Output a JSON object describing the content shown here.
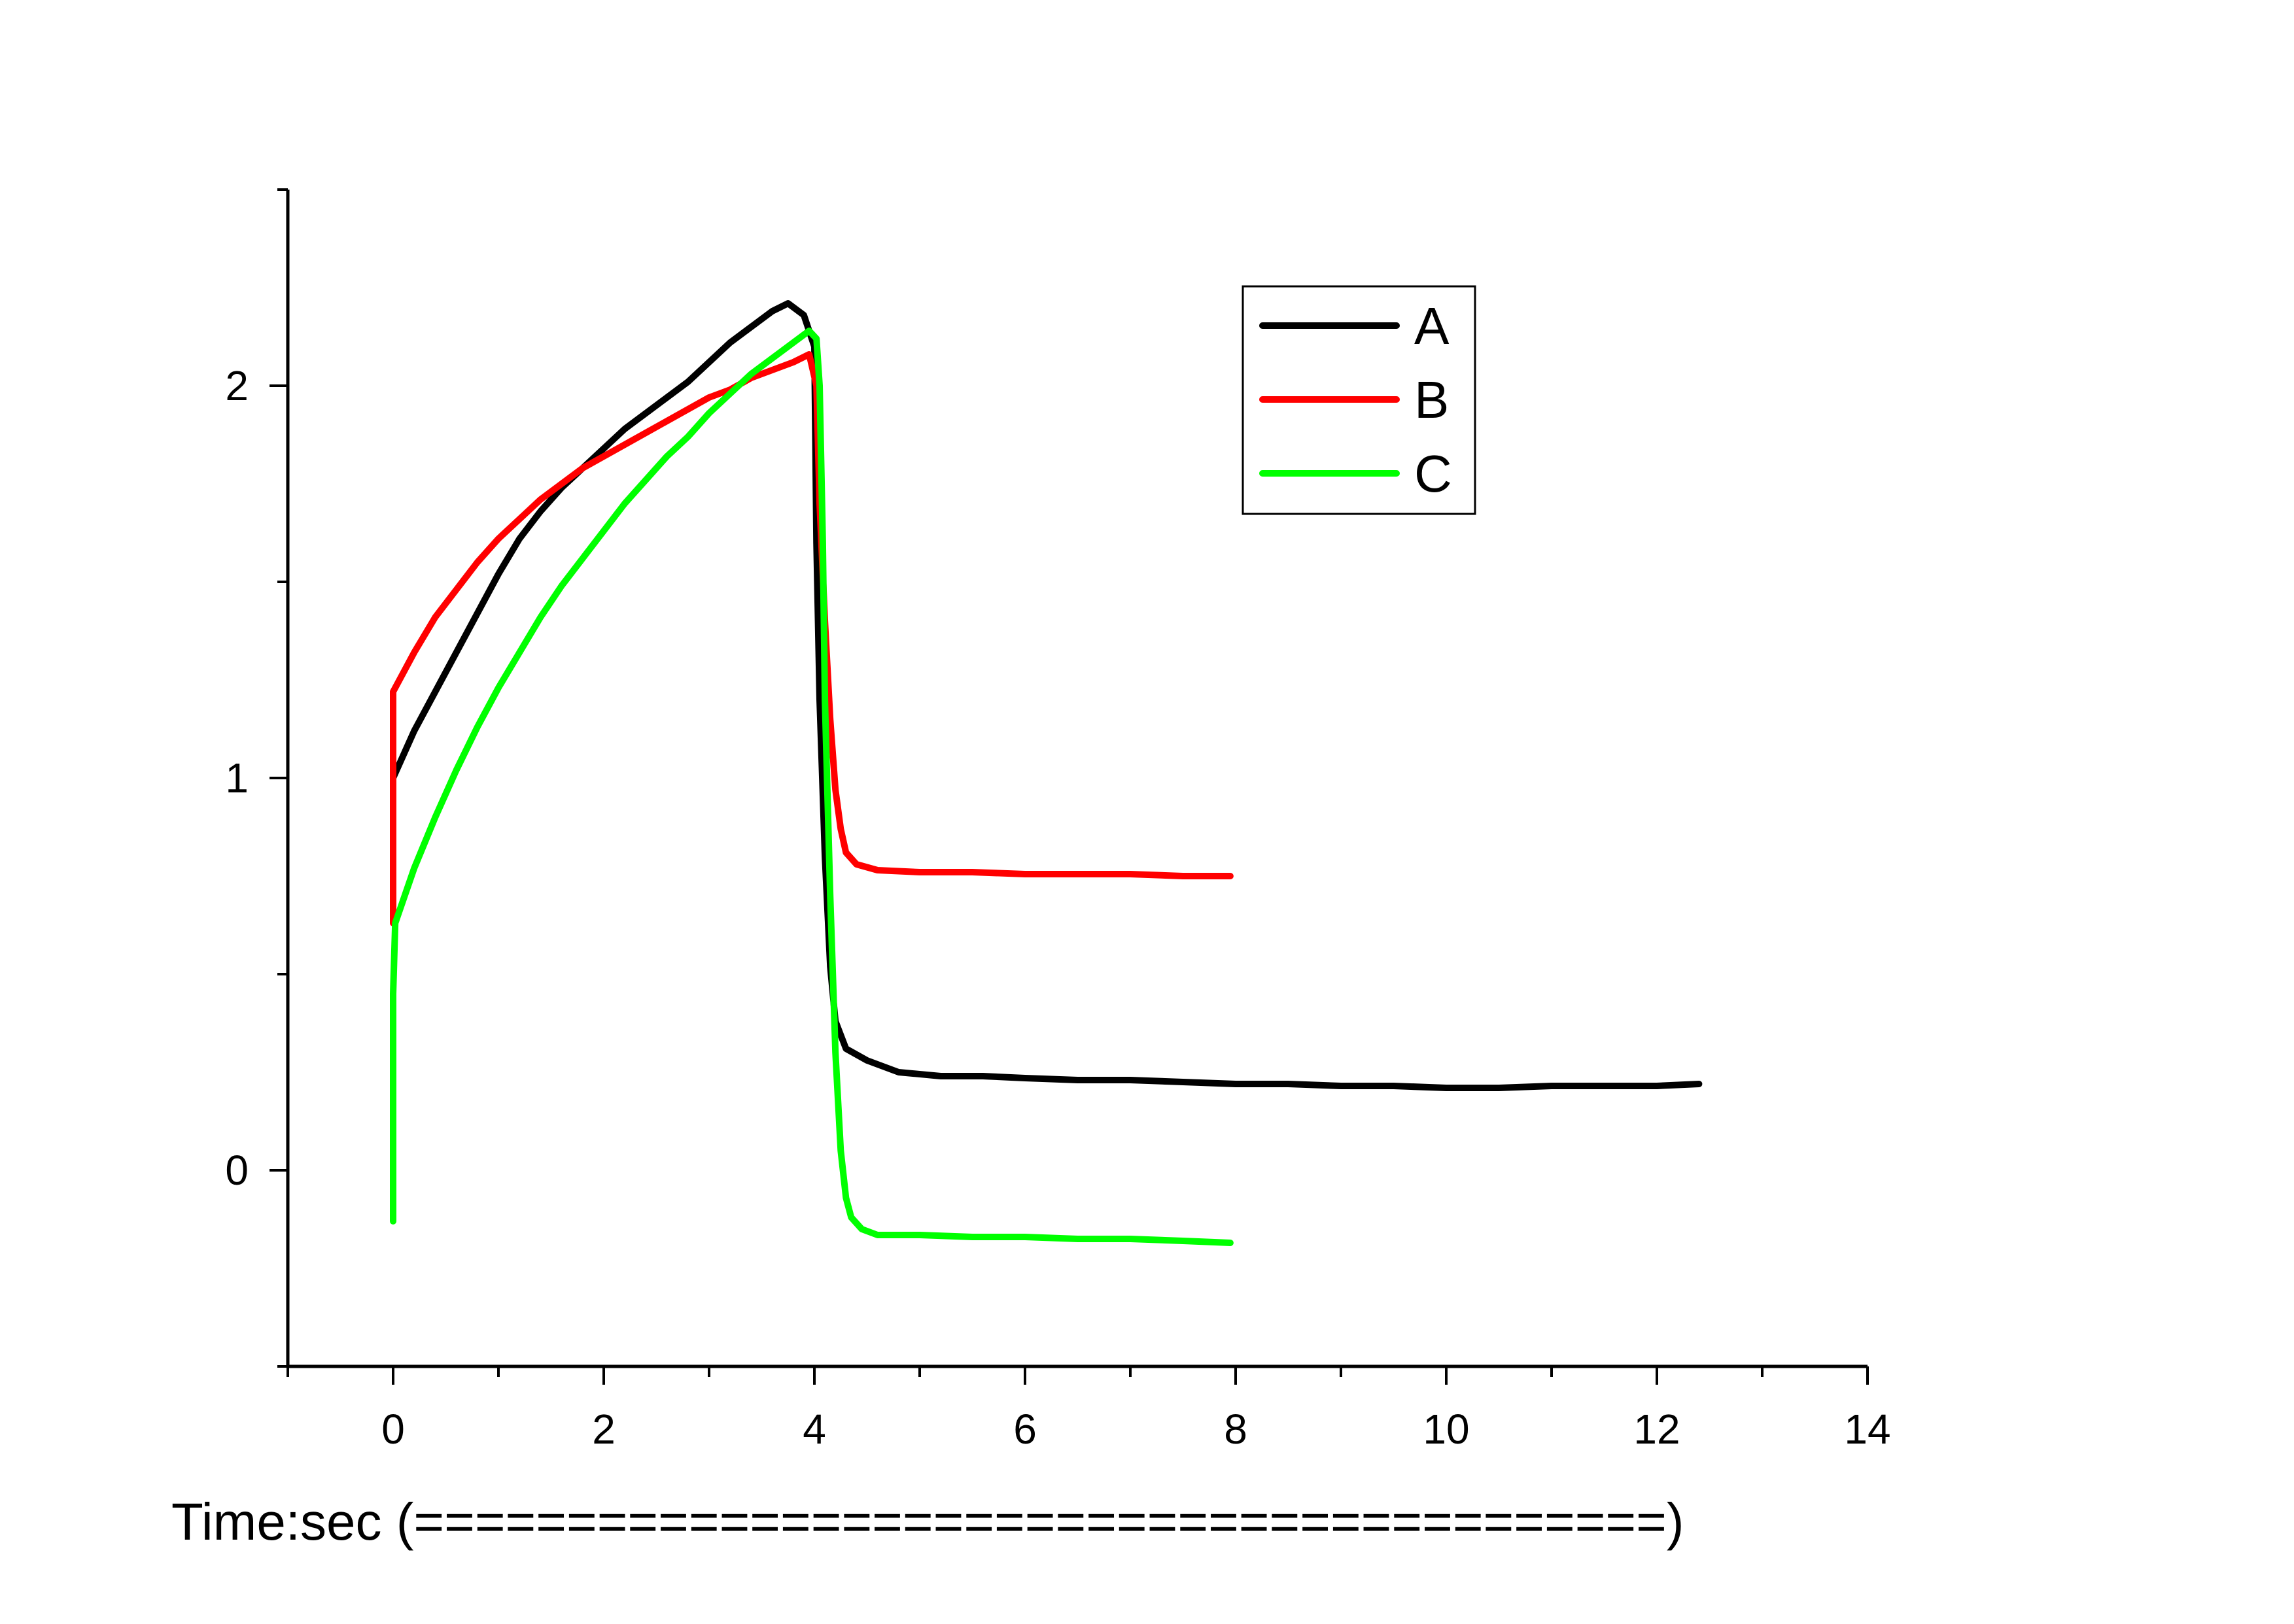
{
  "chart_data": {
    "type": "line",
    "title": "",
    "xlabel": "Time:sec (=========================================)",
    "ylabel": "",
    "xlim": [
      -1,
      14
    ],
    "ylim": [
      -0.5,
      2.5
    ],
    "x_ticks": [
      0,
      2,
      4,
      6,
      8,
      10,
      12,
      14
    ],
    "y_ticks": [
      0,
      1,
      2
    ],
    "grid": false,
    "legend": {
      "placement": "top-center",
      "entries": [
        "A",
        "B",
        "C"
      ]
    },
    "series": [
      {
        "name": "A",
        "color": "#000000",
        "points": [
          [
            0,
            1.0
          ],
          [
            0.2,
            1.12
          ],
          [
            0.4,
            1.22
          ],
          [
            0.6,
            1.32
          ],
          [
            0.8,
            1.42
          ],
          [
            1.0,
            1.52
          ],
          [
            1.2,
            1.61
          ],
          [
            1.4,
            1.68
          ],
          [
            1.6,
            1.74
          ],
          [
            1.8,
            1.79
          ],
          [
            2.0,
            1.84
          ],
          [
            2.2,
            1.89
          ],
          [
            2.4,
            1.93
          ],
          [
            2.6,
            1.97
          ],
          [
            2.8,
            2.01
          ],
          [
            3.0,
            2.06
          ],
          [
            3.2,
            2.11
          ],
          [
            3.4,
            2.15
          ],
          [
            3.6,
            2.19
          ],
          [
            3.75,
            2.21
          ],
          [
            3.9,
            2.18
          ],
          [
            4.0,
            2.1
          ],
          [
            4.02,
            1.6
          ],
          [
            4.05,
            1.2
          ],
          [
            4.1,
            0.8
          ],
          [
            4.15,
            0.52
          ],
          [
            4.2,
            0.38
          ],
          [
            4.3,
            0.31
          ],
          [
            4.5,
            0.28
          ],
          [
            4.8,
            0.25
          ],
          [
            5.2,
            0.24
          ],
          [
            5.6,
            0.24
          ],
          [
            6.0,
            0.235
          ],
          [
            6.5,
            0.23
          ],
          [
            7.0,
            0.23
          ],
          [
            7.5,
            0.225
          ],
          [
            8.0,
            0.22
          ],
          [
            8.5,
            0.22
          ],
          [
            9.0,
            0.215
          ],
          [
            9.5,
            0.215
          ],
          [
            10.0,
            0.21
          ],
          [
            10.5,
            0.21
          ],
          [
            11.0,
            0.215
          ],
          [
            11.5,
            0.215
          ],
          [
            12.0,
            0.215
          ],
          [
            12.4,
            0.22
          ]
        ]
      },
      {
        "name": "B",
        "color": "#ff0000",
        "points": [
          [
            0,
            0.63
          ],
          [
            0,
            1.22
          ],
          [
            0.2,
            1.32
          ],
          [
            0.4,
            1.41
          ],
          [
            0.6,
            1.48
          ],
          [
            0.8,
            1.55
          ],
          [
            1.0,
            1.61
          ],
          [
            1.2,
            1.66
          ],
          [
            1.4,
            1.71
          ],
          [
            1.6,
            1.75
          ],
          [
            1.8,
            1.79
          ],
          [
            2.0,
            1.82
          ],
          [
            2.2,
            1.85
          ],
          [
            2.4,
            1.88
          ],
          [
            2.6,
            1.91
          ],
          [
            2.8,
            1.94
          ],
          [
            3.0,
            1.97
          ],
          [
            3.2,
            1.99
          ],
          [
            3.4,
            2.02
          ],
          [
            3.6,
            2.04
          ],
          [
            3.8,
            2.06
          ],
          [
            3.95,
            2.08
          ],
          [
            4.02,
            2.0
          ],
          [
            4.05,
            1.7
          ],
          [
            4.1,
            1.4
          ],
          [
            4.15,
            1.15
          ],
          [
            4.2,
            0.97
          ],
          [
            4.25,
            0.87
          ],
          [
            4.3,
            0.81
          ],
          [
            4.4,
            0.78
          ],
          [
            4.6,
            0.765
          ],
          [
            5.0,
            0.76
          ],
          [
            5.5,
            0.76
          ],
          [
            6.0,
            0.755
          ],
          [
            6.5,
            0.755
          ],
          [
            7.0,
            0.755
          ],
          [
            7.5,
            0.75
          ],
          [
            7.95,
            0.75
          ]
        ]
      },
      {
        "name": "C",
        "color": "#00ff00",
        "points": [
          [
            0,
            -0.13
          ],
          [
            0,
            0.45
          ],
          [
            0.02,
            0.63
          ],
          [
            0.2,
            0.77
          ],
          [
            0.4,
            0.9
          ],
          [
            0.6,
            1.02
          ],
          [
            0.8,
            1.13
          ],
          [
            1.0,
            1.23
          ],
          [
            1.2,
            1.32
          ],
          [
            1.4,
            1.41
          ],
          [
            1.6,
            1.49
          ],
          [
            1.8,
            1.56
          ],
          [
            2.0,
            1.63
          ],
          [
            2.2,
            1.7
          ],
          [
            2.4,
            1.76
          ],
          [
            2.6,
            1.82
          ],
          [
            2.8,
            1.87
          ],
          [
            3.0,
            1.93
          ],
          [
            3.2,
            1.98
          ],
          [
            3.4,
            2.03
          ],
          [
            3.6,
            2.07
          ],
          [
            3.8,
            2.11
          ],
          [
            3.95,
            2.14
          ],
          [
            4.02,
            2.12
          ],
          [
            4.05,
            2.0
          ],
          [
            4.08,
            1.6
          ],
          [
            4.1,
            1.2
          ],
          [
            4.15,
            0.7
          ],
          [
            4.2,
            0.3
          ],
          [
            4.25,
            0.05
          ],
          [
            4.3,
            -0.07
          ],
          [
            4.35,
            -0.12
          ],
          [
            4.45,
            -0.15
          ],
          [
            4.6,
            -0.165
          ],
          [
            5.0,
            -0.165
          ],
          [
            5.5,
            -0.17
          ],
          [
            6.0,
            -0.17
          ],
          [
            6.5,
            -0.175
          ],
          [
            7.0,
            -0.175
          ],
          [
            7.5,
            -0.18
          ],
          [
            7.95,
            -0.185
          ]
        ]
      }
    ]
  }
}
